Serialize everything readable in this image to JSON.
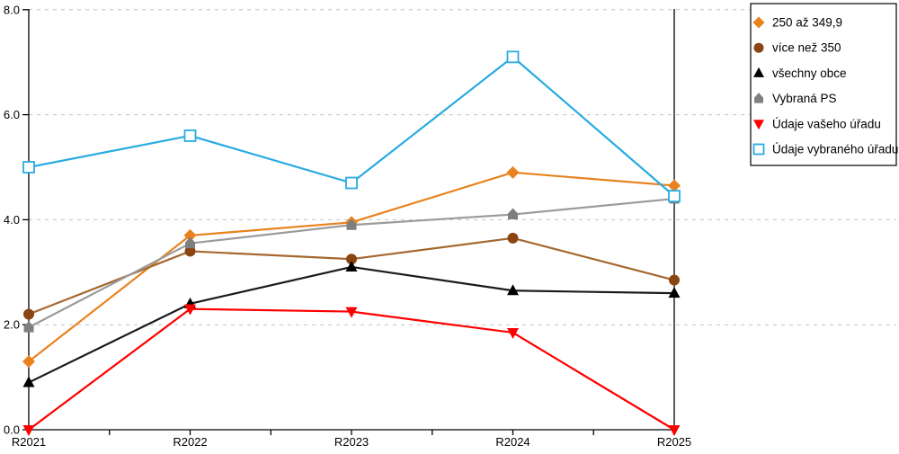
{
  "chart_data": {
    "type": "line",
    "title": "",
    "categories": [
      "R2021",
      "R2022",
      "R2023",
      "R2024",
      "R2025"
    ],
    "series": [
      {
        "name": "250 až 349,9",
        "marker": "diamond",
        "color": "#E8821E",
        "line_color": "#E8821E",
        "values": [
          1.3,
          3.7,
          3.95,
          4.9,
          4.65
        ]
      },
      {
        "name": "více než 350",
        "marker": "circle",
        "color": "#8B4513",
        "line_color": "#A4682F",
        "values": [
          2.2,
          3.4,
          3.25,
          3.65,
          2.85
        ]
      },
      {
        "name": "všechny obce",
        "marker": "triangle-up",
        "color": "#000000",
        "line_color": "#1A1A1A",
        "values": [
          0.9,
          2.4,
          3.1,
          2.65,
          2.6
        ]
      },
      {
        "name": "Vybraná PS",
        "marker": "pentagon",
        "color": "#7F7F7F",
        "line_color": "#9B9B9B",
        "values": [
          1.95,
          3.55,
          3.9,
          4.1,
          4.4
        ]
      },
      {
        "name": "Údaje vašeho úřadu",
        "marker": "triangle-down",
        "color": "#FF0000",
        "line_color": "#FF0000",
        "values": [
          0.0,
          2.3,
          2.25,
          1.85,
          0.0
        ]
      },
      {
        "name": "Údaje vybraného úřadu",
        "marker": "square-open",
        "color": "#29ABE2",
        "line_color": "#29ABE2",
        "values": [
          5.0,
          5.6,
          4.7,
          7.1,
          4.45
        ]
      }
    ],
    "xlabel": "",
    "ylabel": "",
    "ylim": [
      0,
      8
    ],
    "yticks": [
      0,
      2,
      4,
      6,
      8
    ],
    "ytick_labels": [
      "0.0",
      "2.0",
      "4.0",
      "6.0",
      "8.0"
    ],
    "grid": {
      "axis": "y",
      "style": "dashed",
      "color": "#C2C2C2"
    },
    "legend": {
      "position": "top-right",
      "border_color": "#000000",
      "background": "#FFFFFF",
      "text_color": "#000000"
    }
  }
}
